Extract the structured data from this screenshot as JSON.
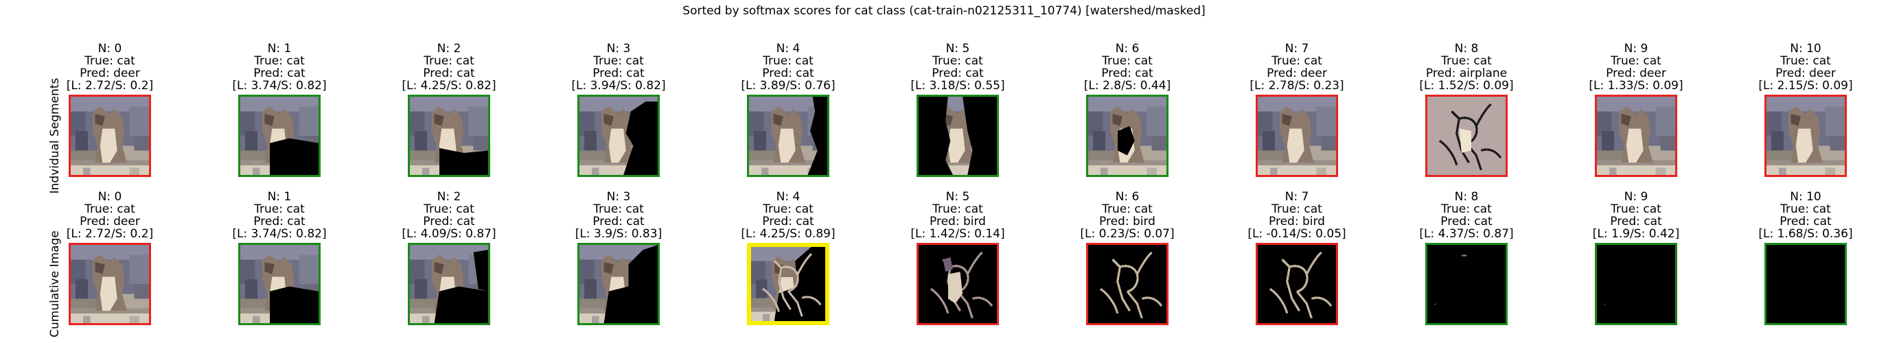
{
  "chart_data": {
    "type": "image-grid",
    "title": "Sorted by softmax scores for cat class (cat-train-n02125311_10774) [watershed/masked]",
    "row_labels": [
      "Indvidual Segments",
      "Cumulative Image"
    ],
    "colors": {
      "correct": "#1a8a1a",
      "incorrect": "#e8231f",
      "highlight": "#f7ee00"
    },
    "rows": [
      {
        "name": "Indvidual Segments",
        "panels": [
          {
            "n": "N: 0",
            "true": "True: cat",
            "pred": "Pred: deer",
            "ls": "[L: 2.72/S: 0.2]",
            "border": "incorrect",
            "view": "full"
          },
          {
            "n": "N: 1",
            "true": "True: cat",
            "pred": "Pred: cat",
            "ls": "[L: 3.74/S: 0.82]",
            "border": "correct",
            "view": "mask_bl"
          },
          {
            "n": "N: 2",
            "true": "True: cat",
            "pred": "Pred: cat",
            "ls": "[L: 4.25/S: 0.82]",
            "border": "correct",
            "view": "mask_bottom"
          },
          {
            "n": "N: 3",
            "true": "True: cat",
            "pred": "Pred: cat",
            "ls": "[L: 3.94/S: 0.82]",
            "border": "correct",
            "view": "mask_right"
          },
          {
            "n": "N: 4",
            "true": "True: cat",
            "pred": "Pred: cat",
            "ls": "[L: 3.89/S: 0.76]",
            "border": "correct",
            "view": "mask_rightstrip"
          },
          {
            "n": "N: 5",
            "true": "True: cat",
            "pred": "Pred: cat",
            "ls": "[L: 3.18/S: 0.55]",
            "border": "correct",
            "view": "mask_left"
          },
          {
            "n": "N: 6",
            "true": "True: cat",
            "pred": "Pred: cat",
            "ls": "[L: 2.8/S: 0.44]",
            "border": "correct",
            "view": "mask_center"
          },
          {
            "n": "N: 7",
            "true": "True: cat",
            "pred": "Pred: deer",
            "ls": "[L: 2.78/S: 0.23]",
            "border": "incorrect",
            "view": "full"
          },
          {
            "n": "N: 8",
            "true": "True: cat",
            "pred": "Pred: airplane",
            "ls": "[L: 1.52/S: 0.09]",
            "border": "incorrect",
            "view": "outline"
          },
          {
            "n": "N: 9",
            "true": "True: cat",
            "pred": "Pred: deer",
            "ls": "[L: 1.33/S: 0.09]",
            "border": "incorrect",
            "view": "full"
          },
          {
            "n": "N: 10",
            "true": "True: cat",
            "pred": "Pred: deer",
            "ls": "[L: 2.15/S: 0.09]",
            "border": "incorrect",
            "view": "full"
          }
        ]
      },
      {
        "name": "Cumulative Image",
        "panels": [
          {
            "n": "N: 0",
            "true": "True: cat",
            "pred": "Pred: deer",
            "ls": "[L: 2.72/S: 0.2]",
            "border": "incorrect",
            "view": "full"
          },
          {
            "n": "N: 1",
            "true": "True: cat",
            "pred": "Pred: cat",
            "ls": "[L: 3.74/S: 0.82]",
            "border": "correct",
            "view": "mask_bl"
          },
          {
            "n": "N: 2",
            "true": "True: cat",
            "pred": "Pred: cat",
            "ls": "[L: 4.09/S: 0.87]",
            "border": "correct",
            "view": "mask_bl2"
          },
          {
            "n": "N: 3",
            "true": "True: cat",
            "pred": "Pred: cat",
            "ls": "[L: 3.9/S: 0.83]",
            "border": "correct",
            "view": "mask_bl3"
          },
          {
            "n": "N: 4",
            "true": "True: cat",
            "pred": "Pred: cat",
            "ls": "[L: 4.25/S: 0.89]",
            "border": "highlight",
            "view": "mask_bl4"
          },
          {
            "n": "N: 5",
            "true": "True: cat",
            "pred": "Pred: bird",
            "ls": "[L: 1.42/S: 0.14]",
            "border": "incorrect",
            "view": "dark_cat"
          },
          {
            "n": "N: 6",
            "true": "True: cat",
            "pred": "Pred: bird",
            "ls": "[L: 0.23/S: 0.07]",
            "border": "incorrect",
            "view": "dark_outline"
          },
          {
            "n": "N: 7",
            "true": "True: cat",
            "pred": "Pred: bird",
            "ls": "[L: -0.14/S: 0.05]",
            "border": "incorrect",
            "view": "dark_outline"
          },
          {
            "n": "N: 8",
            "true": "True: cat",
            "pred": "Pred: cat",
            "ls": "[L: 4.37/S: 0.87]",
            "border": "correct",
            "view": "black_dots"
          },
          {
            "n": "N: 9",
            "true": "True: cat",
            "pred": "Pred: cat",
            "ls": "[L: 1.9/S: 0.42]",
            "border": "correct",
            "view": "black_dot"
          },
          {
            "n": "N: 10",
            "true": "True: cat",
            "pred": "Pred: cat",
            "ls": "[L: 1.68/S: 0.36]",
            "border": "correct",
            "view": "black"
          }
        ]
      }
    ]
  }
}
